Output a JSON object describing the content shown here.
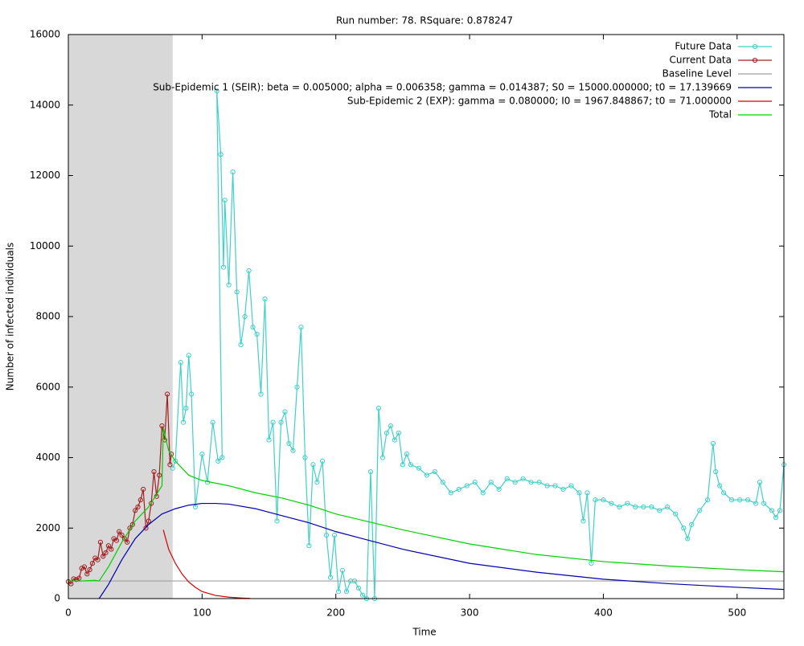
{
  "chart_data": {
    "type": "line",
    "title": "Run number: 78. RSquare: 0.878247",
    "xlabel": "Time",
    "ylabel": "Number of infected individuals",
    "xlim": [
      0,
      535
    ],
    "ylim": [
      0,
      16000
    ],
    "xticks": [
      0,
      100,
      200,
      300,
      400,
      500
    ],
    "yticks": [
      0,
      2000,
      4000,
      6000,
      8000,
      10000,
      12000,
      14000,
      16000
    ],
    "shade": {
      "x": [
        0,
        78
      ],
      "color": "#d8d8d8"
    },
    "series": [
      {
        "name": "Future Data",
        "color": "#40d0c8",
        "points": true,
        "x": [
          78,
          80,
          84,
          86,
          88,
          90,
          92,
          95,
          100,
          104,
          108,
          112,
          115,
          111,
          114,
          116,
          117,
          120,
          123,
          126,
          129,
          132,
          135,
          138,
          141,
          144,
          147,
          150,
          153,
          156,
          159,
          162,
          165,
          168,
          171,
          174,
          177,
          180,
          183,
          186,
          190,
          193,
          196,
          199,
          202,
          205,
          208,
          211,
          214,
          217,
          220,
          223,
          226,
          229,
          232,
          235,
          238,
          241,
          244,
          247,
          250,
          253,
          256,
          262,
          268,
          274,
          280,
          286,
          292,
          298,
          304,
          310,
          316,
          322,
          328,
          334,
          340,
          346,
          352,
          358,
          364,
          370,
          376,
          382,
          385,
          388,
          391,
          394,
          400,
          406,
          412,
          418,
          424,
          430,
          436,
          442,
          448,
          454,
          460,
          463,
          466,
          472,
          478,
          482,
          484,
          487,
          490,
          496,
          502,
          508,
          514,
          517,
          520,
          526,
          529,
          532,
          535
        ],
        "values": [
          3700,
          3900,
          6700,
          5000,
          5400,
          6900,
          5800,
          2600,
          4100,
          3300,
          5000,
          3900,
          4000,
          14400,
          12600,
          9400,
          11300,
          8900,
          12100,
          8700,
          7200,
          8000,
          9300,
          7700,
          7500,
          5800,
          8500,
          4500,
          5000,
          2200,
          5000,
          5300,
          4400,
          4200,
          6000,
          7700,
          4000,
          1500,
          3800,
          3300,
          3900,
          1800,
          600,
          1800,
          200,
          800,
          200,
          500,
          500,
          300,
          100,
          0,
          3600,
          0,
          5400,
          4000,
          4700,
          4900,
          4500,
          4700,
          3800,
          4100,
          3800,
          3700,
          3500,
          3600,
          3300,
          3000,
          3100,
          3200,
          3300,
          3000,
          3300,
          3100,
          3400,
          3300,
          3400,
          3300,
          3300,
          3200,
          3200,
          3100,
          3200,
          3000,
          2200,
          3000,
          1000,
          2800,
          2800,
          2700,
          2600,
          2700,
          2600,
          2600,
          2600,
          2500,
          2600,
          2400,
          2000,
          1700,
          2100,
          2500,
          2800,
          4400,
          3600,
          3200,
          3000,
          2800,
          2800,
          2800,
          2700,
          3300,
          2700,
          2500,
          2300,
          2500,
          3800
        ]
      },
      {
        "name": "Current Data",
        "color": "#a02020",
        "points": true,
        "x": [
          0,
          2,
          4,
          6,
          8,
          10,
          12,
          14,
          16,
          18,
          20,
          22,
          24,
          26,
          28,
          30,
          32,
          34,
          36,
          38,
          40,
          42,
          44,
          46,
          48,
          50,
          52,
          54,
          56,
          58,
          60,
          62,
          64,
          66,
          68,
          70,
          72,
          74,
          76,
          77
        ],
        "values": [
          480,
          420,
          560,
          540,
          580,
          860,
          900,
          700,
          820,
          1000,
          1150,
          1100,
          1600,
          1200,
          1300,
          1500,
          1400,
          1700,
          1650,
          1900,
          1800,
          1700,
          1600,
          2000,
          2100,
          2500,
          2600,
          2800,
          3100,
          2000,
          2200,
          2700,
          3600,
          2900,
          3500,
          4900,
          4500,
          5800,
          3800,
          4100
        ]
      },
      {
        "name": "Baseline Level",
        "color": "#a0a0a0",
        "points": false,
        "x": [
          0,
          535
        ],
        "values": [
          500,
          500
        ]
      },
      {
        "name": "Sub-Epidemic 1 (SEIR): beta = 0.005000; alpha = 0.006358; gamma = 0.014387; S0 = 15000.000000; t0 = 17.139669",
        "color": "#0000b0",
        "points": false,
        "x": [
          23,
          30,
          40,
          50,
          60,
          70,
          80,
          90,
          100,
          110,
          120,
          140,
          160,
          180,
          200,
          220,
          250,
          300,
          350,
          400,
          450,
          500,
          535
        ],
        "values": [
          0,
          400,
          1100,
          1700,
          2100,
          2400,
          2550,
          2650,
          2700,
          2700,
          2680,
          2550,
          2350,
          2150,
          1900,
          1700,
          1400,
          1000,
          750,
          550,
          420,
          320,
          260
        ]
      },
      {
        "name": "Sub-Epidemic 2 (EXP): gamma = 0.080000; I0 = 1967.848867; t0 = 71.000000",
        "color": "#d00000",
        "points": false,
        "x": [
          71,
          75,
          80,
          85,
          90,
          95,
          100,
          110,
          120,
          130,
          136
        ],
        "values": [
          1950,
          1400,
          1000,
          700,
          470,
          320,
          200,
          90,
          40,
          15,
          5
        ]
      },
      {
        "name": "Total",
        "color": "#00d000",
        "points": false,
        "x": [
          0,
          10,
          20,
          23,
          30,
          40,
          50,
          60,
          65,
          70,
          71,
          73,
          75,
          80,
          90,
          100,
          120,
          140,
          160,
          180,
          200,
          250,
          300,
          350,
          400,
          450,
          500,
          535
        ],
        "values": [
          500,
          500,
          520,
          500,
          900,
          1600,
          2200,
          2600,
          2900,
          3200,
          4850,
          4500,
          4200,
          3900,
          3500,
          3350,
          3200,
          3000,
          2850,
          2650,
          2400,
          1950,
          1550,
          1250,
          1050,
          920,
          820,
          760
        ]
      }
    ]
  }
}
